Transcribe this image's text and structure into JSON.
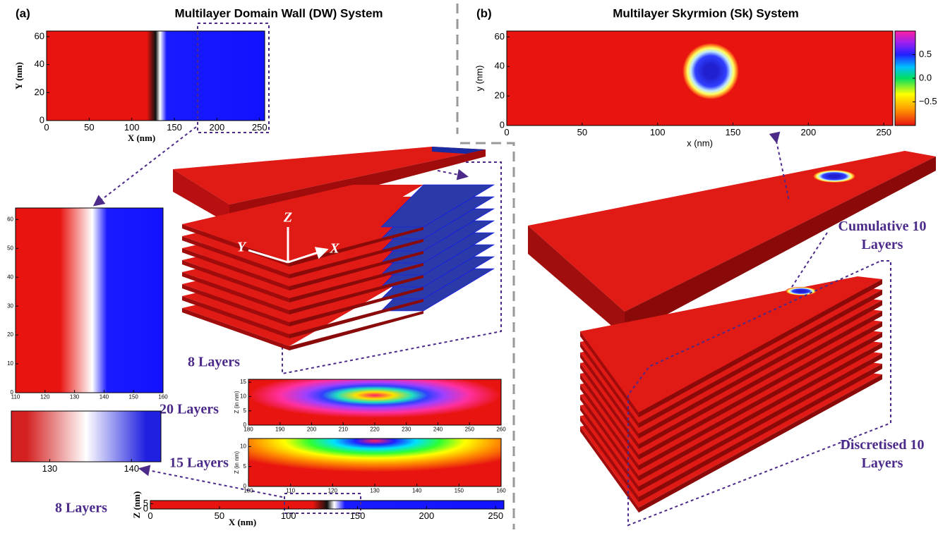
{
  "panel_a": {
    "label": "(a)",
    "title": "Multilayer Domain Wall (DW) System",
    "top_plot": {
      "xlabel": "X (nm)",
      "ylabel": "Y (nm)",
      "xlim": [
        0,
        256
      ],
      "ylim": [
        0,
        64
      ],
      "xticks": [
        0,
        50,
        100,
        150,
        200,
        250
      ],
      "yticks": [
        0,
        20,
        40,
        60
      ]
    },
    "zoom_plot": {
      "xlim": [
        110,
        160
      ],
      "ylim": [
        0,
        64
      ],
      "xticks": [
        110,
        120,
        130,
        140,
        150,
        160
      ],
      "yticks": [
        0,
        10,
        20,
        30,
        40,
        50,
        60
      ]
    },
    "arrow_strip": {
      "xlim": [
        125.3,
        143.6
      ],
      "xticks": [
        130,
        140
      ]
    },
    "stack_label": "8 Layers",
    "axes3d": {
      "x": "X",
      "y": "Y",
      "z": "Z"
    },
    "z20": {
      "label": "20 Layers",
      "ylabel": "Z (in nm)",
      "xlim": [
        180,
        260
      ],
      "ylim": [
        0,
        16
      ],
      "xticks": [
        180,
        190,
        200,
        210,
        220,
        230,
        240,
        250,
        260
      ],
      "yticks": [
        0,
        5,
        10,
        15
      ]
    },
    "z15": {
      "label": "15 Layers",
      "ylabel": "Z (in nm)",
      "xlim": [
        100,
        160
      ],
      "ylim": [
        0,
        12
      ],
      "xticks": [
        100,
        110,
        120,
        130,
        140,
        150,
        160
      ],
      "yticks": [
        0,
        5,
        10
      ]
    },
    "z8": {
      "label": "8 Layers",
      "ylabel": "Z (nm)",
      "xlabel": "X (nm)",
      "xlim": [
        0,
        256
      ],
      "ylim": [
        0,
        8
      ],
      "xticks": [
        0,
        50,
        100,
        150,
        200,
        250
      ],
      "yticks": [
        0,
        5
      ]
    }
  },
  "panel_b": {
    "label": "(b)",
    "title": "Multilayer Skyrmion (Sk) System",
    "plot": {
      "xlabel": "x (nm)",
      "ylabel": "y (nm)",
      "xlim": [
        0,
        256
      ],
      "ylim": [
        0,
        64
      ],
      "xticks": [
        0,
        50,
        100,
        150,
        200,
        250
      ],
      "yticks": [
        0,
        20,
        40,
        60
      ]
    },
    "colorbar": {
      "lim": [
        -1,
        1
      ],
      "ticks": [
        0.5,
        {
          "value": 0,
          "label": "0.0"
        },
        {
          "value": -0.5,
          "label": "−0.5"
        }
      ]
    },
    "cumulative": "Cumulative 10 Layers",
    "discretised": "Discretised 10 Layers"
  }
}
